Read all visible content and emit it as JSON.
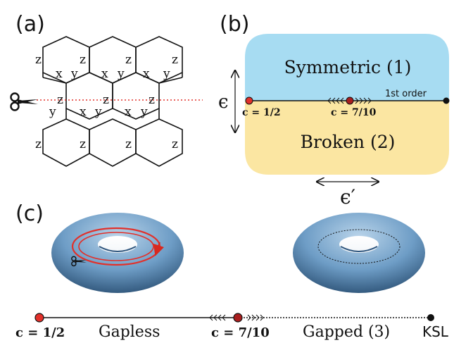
{
  "panel_a": {
    "label": "(a)",
    "bond_letters": [
      "z",
      "x",
      "y"
    ]
  },
  "panel_b": {
    "label": "(b)",
    "region_top": "Symmetric (1)",
    "region_bottom": "Broken (2)",
    "transition_label": "1st order",
    "point_left": "c = 1/2",
    "point_mid": "c = 7/10",
    "axis_vertical": "ϵ",
    "axis_horizontal": "ϵ′",
    "colors": {
      "top": "#a7dcf2",
      "bottom": "#fbe6a2",
      "point": "#e2302a"
    }
  },
  "panel_c": {
    "label": "(c)",
    "point_left": "c = 1/2",
    "phase_left": "Gapless",
    "point_mid": "c = 7/10",
    "phase_right": "Gapped (3)",
    "point_right": "KSL",
    "colors": {
      "torus": "#6e9dc6",
      "loop": "#e2302a"
    }
  }
}
